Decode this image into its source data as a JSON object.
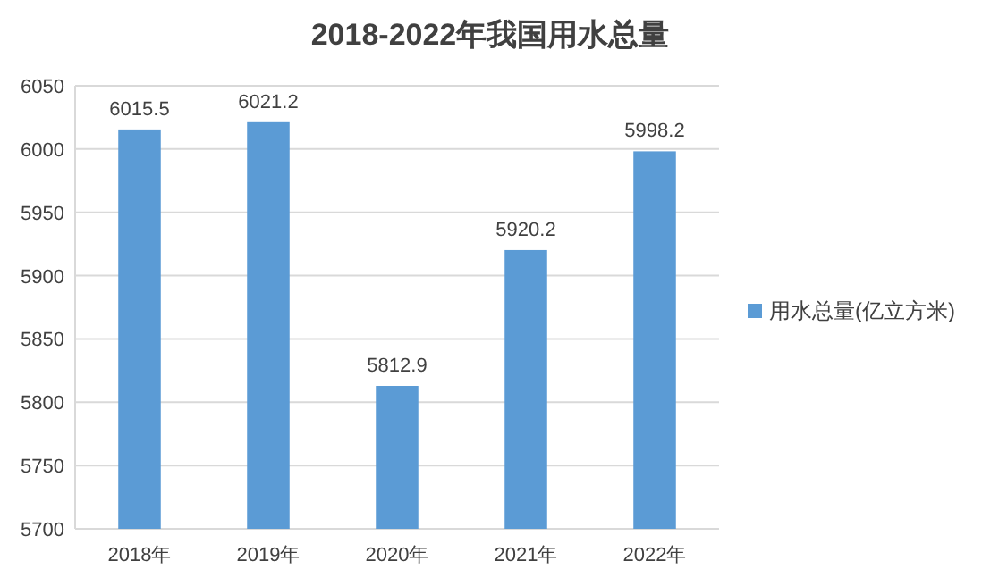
{
  "chart_data": {
    "type": "bar",
    "title": "2018-2022年我国用水总量",
    "categories": [
      "2018年",
      "2019年",
      "2020年",
      "2021年",
      "2022年"
    ],
    "series": [
      {
        "name": "用水总量(亿立方米)",
        "color": "#5b9bd5",
        "values": [
          6015.5,
          6021.2,
          5812.9,
          5920.2,
          5998.2
        ]
      }
    ],
    "ylim": [
      5700,
      6050
    ],
    "yticks": [
      5700,
      5750,
      5800,
      5850,
      5900,
      5950,
      6000,
      6050
    ],
    "grid": "y",
    "legend": "right",
    "data_labels": true
  }
}
